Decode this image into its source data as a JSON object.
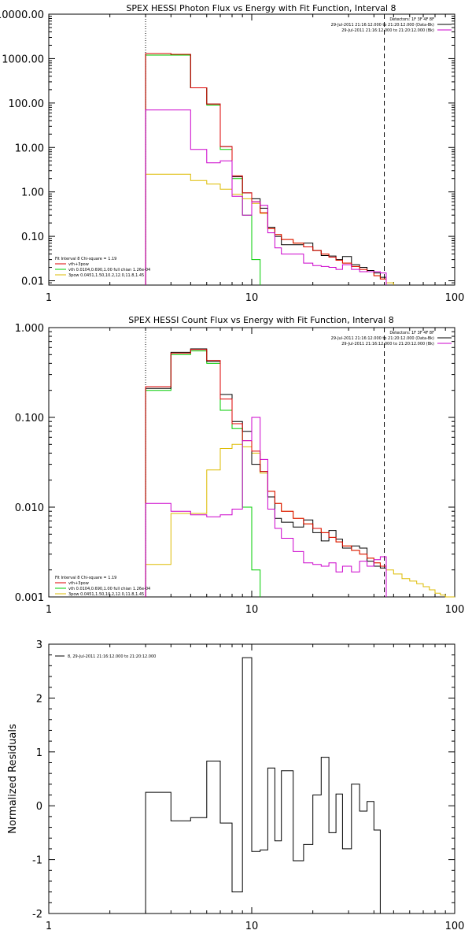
{
  "chart_data": [
    {
      "type": "step",
      "title": "SPEX HESSI Photon Flux vs Energy with Fit Function, Interval 8",
      "xscale": "log",
      "yscale": "log",
      "xlim": [
        1,
        100
      ],
      "ylim": [
        0.008,
        10000
      ],
      "yticks": [
        0.01,
        0.1,
        1,
        10,
        100,
        1000,
        10000
      ],
      "ytick_labels": [
        "0.01",
        "0.10",
        "1.00",
        "10.00",
        "100.00",
        "1000.00",
        "10000.00"
      ],
      "xticks": [
        1,
        10,
        100
      ],
      "xtick_labels": [
        "1",
        "10",
        "100"
      ],
      "vlines": [
        {
          "x": 3.0,
          "style": "dotted"
        },
        {
          "x": 45.0,
          "style": "dashed"
        }
      ],
      "header_legend": [
        {
          "text": "Detectors: 1F 3F 4F 8F",
          "color": "#000000"
        },
        {
          "text": "29-Jul-2011 21:16:12.000 to 21:20:12.000 (Data-Bk)",
          "color": "#000000"
        },
        {
          "text": "29-Jul-2011 21:16:12.000 to 21:20:12.000 (Bk)",
          "color": "#cc00cc"
        }
      ],
      "fit_legend": [
        {
          "text": "Fit Interval 8   Chi-square = 1.19",
          "color": "#000000"
        },
        {
          "text": "vth+3pow",
          "color": "#dd0000"
        },
        {
          "text": "vth 0.0104,0.690,1.00  full chian 1.26e-04",
          "color": "#00cc00"
        },
        {
          "text": "3pow 0.0451,1.50,10.2,12.0,11.8,1.45",
          "color": "#ddbb00"
        }
      ],
      "series": [
        {
          "name": "vth",
          "color": "#00cc00",
          "edges": [
            3.0,
            4.0,
            5.0,
            6.0,
            7.0,
            8.0,
            9.0,
            10.0,
            11.0
          ],
          "values": [
            1200,
            1200,
            220,
            90,
            9.0,
            2.0,
            0.3,
            0.03,
            0.008
          ]
        },
        {
          "name": "3pow",
          "color": "#ddbb00",
          "edges": [
            3.0,
            4.0,
            5.0,
            6.0,
            7.0,
            8.0,
            9.0,
            10.0,
            11.0,
            12.0,
            13.0,
            14.0,
            16.0,
            18.0,
            20.0,
            22.0,
            24.0,
            26.0,
            28.0,
            31.0,
            34.0,
            37.0,
            40.0,
            43.0,
            46.0,
            50.0
          ],
          "values": [
            2.5,
            2.5,
            1.8,
            1.5,
            1.15,
            0.88,
            0.7,
            0.55,
            0.33,
            0.15,
            0.11,
            0.085,
            0.07,
            0.058,
            0.048,
            0.04,
            0.034,
            0.029,
            0.025,
            0.021,
            0.018,
            0.016,
            0.013,
            0.011,
            0.009
          ]
        },
        {
          "name": "Data-Bk",
          "color": "#000000",
          "edges": [
            3.0,
            4.0,
            5.0,
            6.0,
            7.0,
            8.0,
            9.0,
            10.0,
            11.0,
            12.0,
            13.0,
            14.0,
            16.0,
            18.0,
            20.0,
            22.0,
            24.0,
            26.0,
            28.0,
            31.0,
            34.0,
            37.0,
            40.0,
            43.0,
            46.0
          ],
          "values": [
            1300,
            1250,
            220,
            95,
            10.5,
            2.2,
            0.95,
            0.7,
            0.43,
            0.16,
            0.1,
            0.065,
            0.065,
            0.07,
            0.048,
            0.037,
            0.036,
            0.03,
            0.035,
            0.023,
            0.02,
            0.017,
            0.015,
            0.012
          ]
        },
        {
          "name": "vth+3pow",
          "color": "#dd0000",
          "edges": [
            3.0,
            4.0,
            5.0,
            6.0,
            7.0,
            8.0,
            9.0,
            10.0,
            11.0,
            12.0,
            13.0,
            14.0,
            16.0,
            18.0,
            20.0,
            22.0,
            24.0,
            26.0,
            28.0,
            31.0,
            34.0,
            37.0,
            40.0,
            43.0,
            46.0
          ],
          "values": [
            1300,
            1250,
            220,
            95,
            10.5,
            2.3,
            0.95,
            0.6,
            0.34,
            0.15,
            0.11,
            0.085,
            0.07,
            0.058,
            0.048,
            0.04,
            0.034,
            0.029,
            0.025,
            0.021,
            0.018,
            0.016,
            0.013,
            0.011
          ]
        },
        {
          "name": "Bk",
          "color": "#cc00cc",
          "edges": [
            3.0,
            4.0,
            5.0,
            6.0,
            7.0,
            8.0,
            9.0,
            10.0,
            11.0,
            12.0,
            13.0,
            14.0,
            16.0,
            18.0,
            20.0,
            22.0,
            24.0,
            26.0,
            28.0,
            31.0,
            34.0,
            37.0,
            40.0,
            43.0,
            46.0
          ],
          "values": [
            70,
            70,
            9.0,
            4.5,
            5.0,
            0.8,
            0.3,
            0.6,
            0.5,
            0.12,
            0.055,
            0.04,
            0.04,
            0.025,
            0.022,
            0.021,
            0.02,
            0.018,
            0.023,
            0.018,
            0.016,
            0.016,
            0.016,
            0.015
          ]
        }
      ]
    },
    {
      "type": "step",
      "title": "SPEX HESSI Count Flux vs Energy with Fit Function, Interval 8",
      "xscale": "log",
      "yscale": "log",
      "xlim": [
        1,
        100
      ],
      "ylim": [
        0.001,
        1.0
      ],
      "yticks": [
        0.001,
        0.01,
        0.1,
        1.0
      ],
      "ytick_labels": [
        "0.001",
        "0.010",
        "0.100",
        "1.000"
      ],
      "xticks": [
        1,
        10,
        100
      ],
      "xtick_labels": [
        "1",
        "10",
        "100"
      ],
      "vlines": [
        {
          "x": 3.0,
          "style": "dotted"
        },
        {
          "x": 45.0,
          "style": "dashed"
        }
      ],
      "header_legend": [
        {
          "text": "Detectors: 1F 3F 4F 8F",
          "color": "#000000"
        },
        {
          "text": "29-Jul-2011 21:16:12.000 to 21:20:12.000 (Data-Bk)",
          "color": "#000000"
        },
        {
          "text": "29-Jul-2011 21:16:12.000 to 21:20:12.000 (Bk)",
          "color": "#cc00cc"
        }
      ],
      "fit_legend": [
        {
          "text": "Fit Interval 8   Chi-square = 1.19",
          "color": "#000000"
        },
        {
          "text": "vth+3pow",
          "color": "#dd0000"
        },
        {
          "text": "vth 0.0104,0.690,1.00  full chian 1.26e-04",
          "color": "#00cc00"
        },
        {
          "text": "3pow 0.0451,1.50,10.2,12.0,11.8,1.45",
          "color": "#ddbb00"
        }
      ],
      "series": [
        {
          "name": "vth",
          "color": "#00cc00",
          "edges": [
            3.0,
            4.0,
            5.0,
            6.0,
            7.0,
            8.0,
            9.0,
            10.0,
            11.0
          ],
          "values": [
            0.2,
            0.5,
            0.55,
            0.4,
            0.12,
            0.075,
            0.01,
            0.002,
            0.0008
          ]
        },
        {
          "name": "3pow",
          "color": "#ddbb00",
          "edges": [
            3.0,
            4.0,
            5.0,
            6.0,
            7.0,
            8.0,
            9.0,
            10.0,
            11.0,
            12.0,
            13.0,
            14.0,
            16.0,
            18.0,
            20.0,
            22.0,
            24.0,
            26.0,
            28.0,
            31.0,
            34.0,
            37.0,
            40.0,
            43.0,
            46.0,
            50.0,
            55.0,
            60.0,
            65.0,
            70.0,
            75.0,
            80.0,
            85.0,
            90.0,
            95.0,
            100.0
          ],
          "values": [
            0.0023,
            0.0085,
            0.0085,
            0.026,
            0.045,
            0.05,
            0.047,
            0.04,
            0.024,
            0.015,
            0.011,
            0.009,
            0.0075,
            0.0065,
            0.0058,
            0.0052,
            0.0046,
            0.0041,
            0.0037,
            0.0033,
            0.003,
            0.0027,
            0.0024,
            0.0022,
            0.002,
            0.0018,
            0.0016,
            0.0015,
            0.0014,
            0.0013,
            0.0012,
            0.0011,
            0.00105,
            0.001,
            0.0009
          ]
        },
        {
          "name": "Data-Bk",
          "color": "#000000",
          "edges": [
            3.0,
            4.0,
            5.0,
            6.0,
            7.0,
            8.0,
            9.0,
            10.0,
            11.0,
            12.0,
            13.0,
            14.0,
            16.0,
            18.0,
            20.0,
            22.0,
            24.0,
            26.0,
            28.0,
            31.0,
            34.0,
            37.0,
            40.0,
            43.0,
            46.0
          ],
          "values": [
            0.21,
            0.53,
            0.58,
            0.42,
            0.18,
            0.09,
            0.07,
            0.03,
            0.025,
            0.013,
            0.0075,
            0.0068,
            0.006,
            0.0072,
            0.0052,
            0.0042,
            0.0055,
            0.0044,
            0.0035,
            0.0037,
            0.0035,
            0.0025,
            0.0022,
            0.0021
          ]
        },
        {
          "name": "vth+3pow",
          "color": "#dd0000",
          "edges": [
            3.0,
            4.0,
            5.0,
            6.0,
            7.0,
            8.0,
            9.0,
            10.0,
            11.0,
            12.0,
            13.0,
            14.0,
            16.0,
            18.0,
            20.0,
            22.0,
            24.0,
            26.0,
            28.0,
            31.0,
            34.0,
            37.0,
            40.0,
            43.0,
            46.0
          ],
          "values": [
            0.22,
            0.52,
            0.57,
            0.43,
            0.16,
            0.085,
            0.055,
            0.042,
            0.025,
            0.015,
            0.011,
            0.009,
            0.0075,
            0.0065,
            0.0058,
            0.0052,
            0.0046,
            0.0041,
            0.0037,
            0.0033,
            0.003,
            0.0027,
            0.0024,
            0.0022
          ]
        },
        {
          "name": "Bk",
          "color": "#cc00cc",
          "edges": [
            3.0,
            4.0,
            5.0,
            6.0,
            7.0,
            8.0,
            9.0,
            10.0,
            11.0,
            12.0,
            13.0,
            14.0,
            16.0,
            18.0,
            20.0,
            22.0,
            24.0,
            26.0,
            28.0,
            31.0,
            34.0,
            37.0,
            40.0,
            43.0,
            46.0
          ],
          "values": [
            0.011,
            0.009,
            0.0082,
            0.0078,
            0.0082,
            0.0095,
            0.055,
            0.1,
            0.034,
            0.0095,
            0.0058,
            0.0045,
            0.0032,
            0.0024,
            0.0023,
            0.0022,
            0.0024,
            0.0019,
            0.0022,
            0.0019,
            0.0025,
            0.0022,
            0.0026,
            0.0028
          ]
        }
      ]
    },
    {
      "type": "step",
      "xscale": "log",
      "yscale": "linear",
      "xlim": [
        1,
        100
      ],
      "ylim": [
        -2,
        3
      ],
      "yticks": [
        -2,
        -1,
        0,
        1,
        2,
        3
      ],
      "ytick_labels": [
        "-2",
        "-1",
        "0",
        "1",
        "2",
        "3"
      ],
      "xticks": [
        1,
        10,
        100
      ],
      "xtick_labels": [
        "1",
        "10",
        "100"
      ],
      "ylabel": "Normalized Residuals",
      "legend_text": "8, 29-Jul-2011 21:16:12.000 to 21:20:12.000",
      "series": [
        {
          "name": "residuals",
          "color": "#000000",
          "edges": [
            3.0,
            4.0,
            5.0,
            6.0,
            7.0,
            8.0,
            9.0,
            10.0,
            11.0,
            12.0,
            13.0,
            14.0,
            16.0,
            18.0,
            20.0,
            22.0,
            24.0,
            26.0,
            28.0,
            31.0,
            34.0,
            37.0,
            40.0,
            43.0,
            46.0
          ],
          "values": [
            0.25,
            -0.28,
            -0.22,
            0.83,
            -0.32,
            -1.6,
            2.75,
            -0.85,
            -0.82,
            0.7,
            -0.65,
            0.65,
            -1.02,
            -0.72,
            0.2,
            0.9,
            -0.5,
            0.22,
            -0.8,
            0.4,
            -0.1,
            0.08,
            -0.45,
            -2.0
          ],
          "baseline": -2.0
        }
      ]
    }
  ]
}
